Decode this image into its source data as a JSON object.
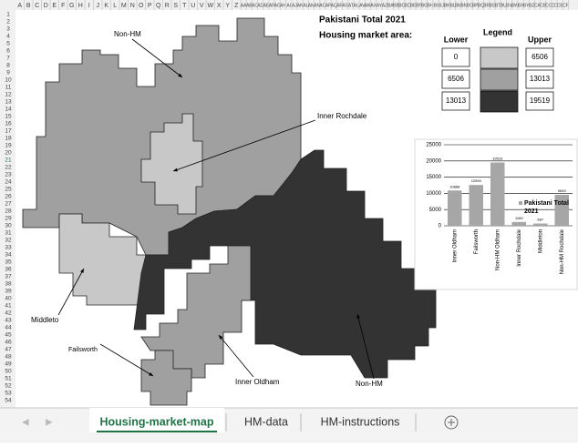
{
  "column_headers": [
    "A",
    "B",
    "C",
    "D",
    "E",
    "F",
    "G",
    "H",
    "I",
    "J",
    "K",
    "L",
    "M",
    "N",
    "O",
    "P",
    "Q",
    "R",
    "S",
    "T",
    "U",
    "V",
    "W",
    "X",
    "Y",
    "Z",
    "AA",
    "AB",
    "AC",
    "AD",
    "AE",
    "AF",
    "AG",
    "AH",
    "AI",
    "AJ",
    "AK",
    "AL",
    "AM",
    "AN",
    "AO",
    "AP",
    "AQ",
    "AR",
    "AS",
    "AT",
    "AU",
    "AV",
    "AW",
    "AX",
    "AY",
    "AZ",
    "BA",
    "BB",
    "BC",
    "BD",
    "BE",
    "BF",
    "BG",
    "BH",
    "BI",
    "BJ",
    "BK",
    "BL",
    "BM",
    "BN",
    "BO",
    "BP",
    "BQ",
    "BR",
    "BS",
    "BT",
    "BU",
    "BV",
    "BW",
    "BX",
    "BY",
    "BZ",
    "CA",
    "CB",
    "CC",
    "CD",
    "CE",
    "CF"
  ],
  "row_numbers": [
    1,
    2,
    3,
    4,
    5,
    6,
    7,
    8,
    9,
    10,
    11,
    12,
    13,
    14,
    15,
    16,
    17,
    18,
    19,
    20,
    21,
    22,
    23,
    24,
    25,
    26,
    27,
    28,
    29,
    30,
    31,
    32,
    33,
    34,
    35,
    36,
    37,
    38,
    39,
    40,
    41,
    42,
    43,
    44,
    45,
    46,
    47,
    48,
    49,
    50,
    51,
    52,
    53,
    54
  ],
  "title": "Pakistani Total 2021",
  "subtitle": "Housing market area:",
  "legend_table": {
    "headers": [
      "Lower",
      "Legend",
      "Upper"
    ],
    "rows": [
      {
        "lower": 0,
        "color": "#c8c8c8",
        "upper": 6506
      },
      {
        "lower": 6506,
        "color": "#a0a0a0",
        "upper": 13013
      },
      {
        "lower": 13013,
        "color": "#333333",
        "upper": 19519
      }
    ]
  },
  "map_labels": [
    "Non-HM",
    "Inner Rochdale",
    "Middleto",
    "Failsworth",
    "Inner Oldham",
    "Non-HM"
  ],
  "chart_data": {
    "type": "bar",
    "categories": [
      "Inner Oldham",
      "Failsworth",
      "Non-HM Oldham",
      "Inner Rochdale",
      "Middleton",
      "Non-HM Rochdale"
    ],
    "series": [
      {
        "name": "Pakistani Total 2021",
        "color": "#a6a6a6",
        "values": [
          10888,
          12590,
          19519,
          1169,
          687,
          9549
        ]
      }
    ],
    "ylim": [
      0,
      25000
    ],
    "yticks": [
      0,
      5000,
      10000,
      15000,
      20000,
      25000
    ],
    "grid": true,
    "legend": "right"
  },
  "tabs": [
    "Housing-market-map",
    "HM-data",
    "HM-instructions"
  ]
}
